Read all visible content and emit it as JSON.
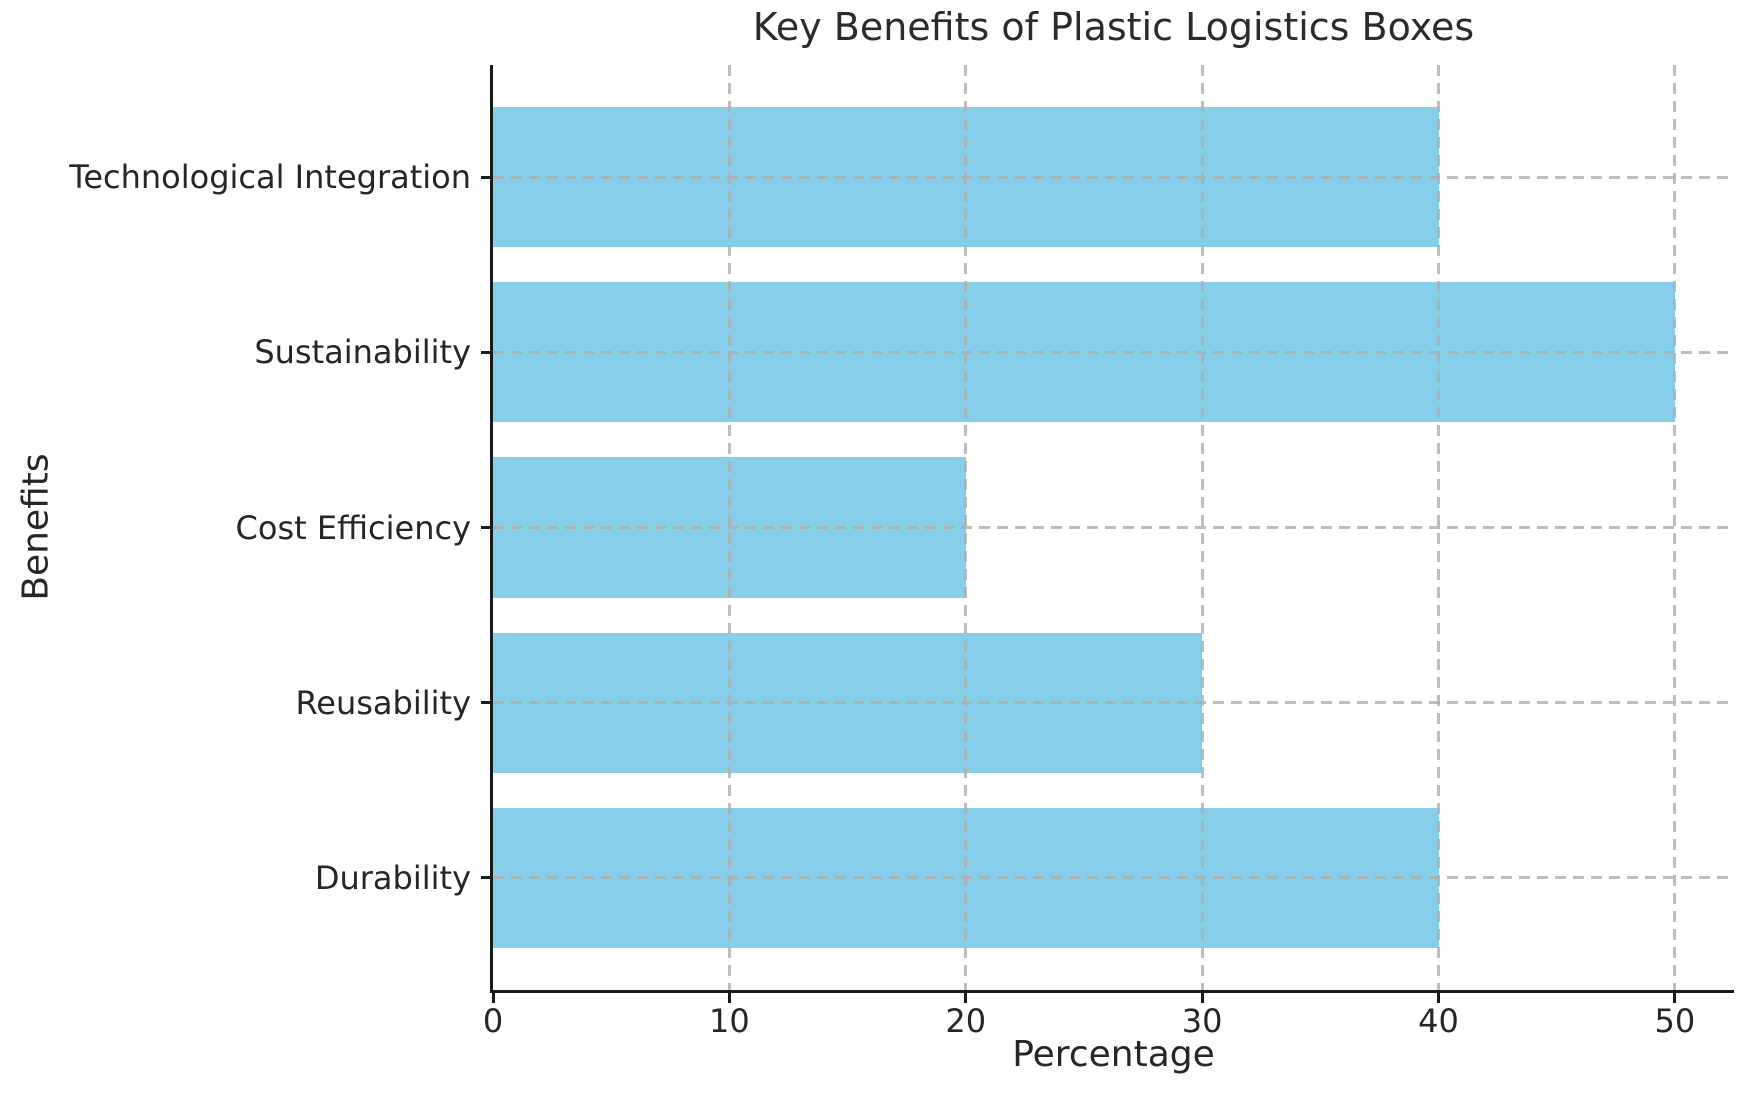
{
  "chart_data": {
    "type": "bar",
    "orientation": "horizontal",
    "title": "Key Benefits of Plastic Logistics Boxes",
    "xlabel": "Percentage",
    "ylabel": "Benefits",
    "categories": [
      "Technological Integration",
      "Sustainability",
      "Cost Efficiency",
      "Reusability",
      "Durability"
    ],
    "values": [
      40,
      50,
      20,
      30,
      40
    ],
    "xticks": [
      0,
      10,
      20,
      30,
      40,
      50
    ],
    "xlim": [
      0,
      52.5
    ],
    "bar_color": "#87CEEB",
    "grid": {
      "visible": true,
      "style": "dashed",
      "color": "#adadad",
      "axes": "both",
      "drawn_over_bars": true
    },
    "spine_color": "#1a1a1a",
    "text_color": "#262626",
    "background": "#ffffff",
    "legend": "none"
  }
}
